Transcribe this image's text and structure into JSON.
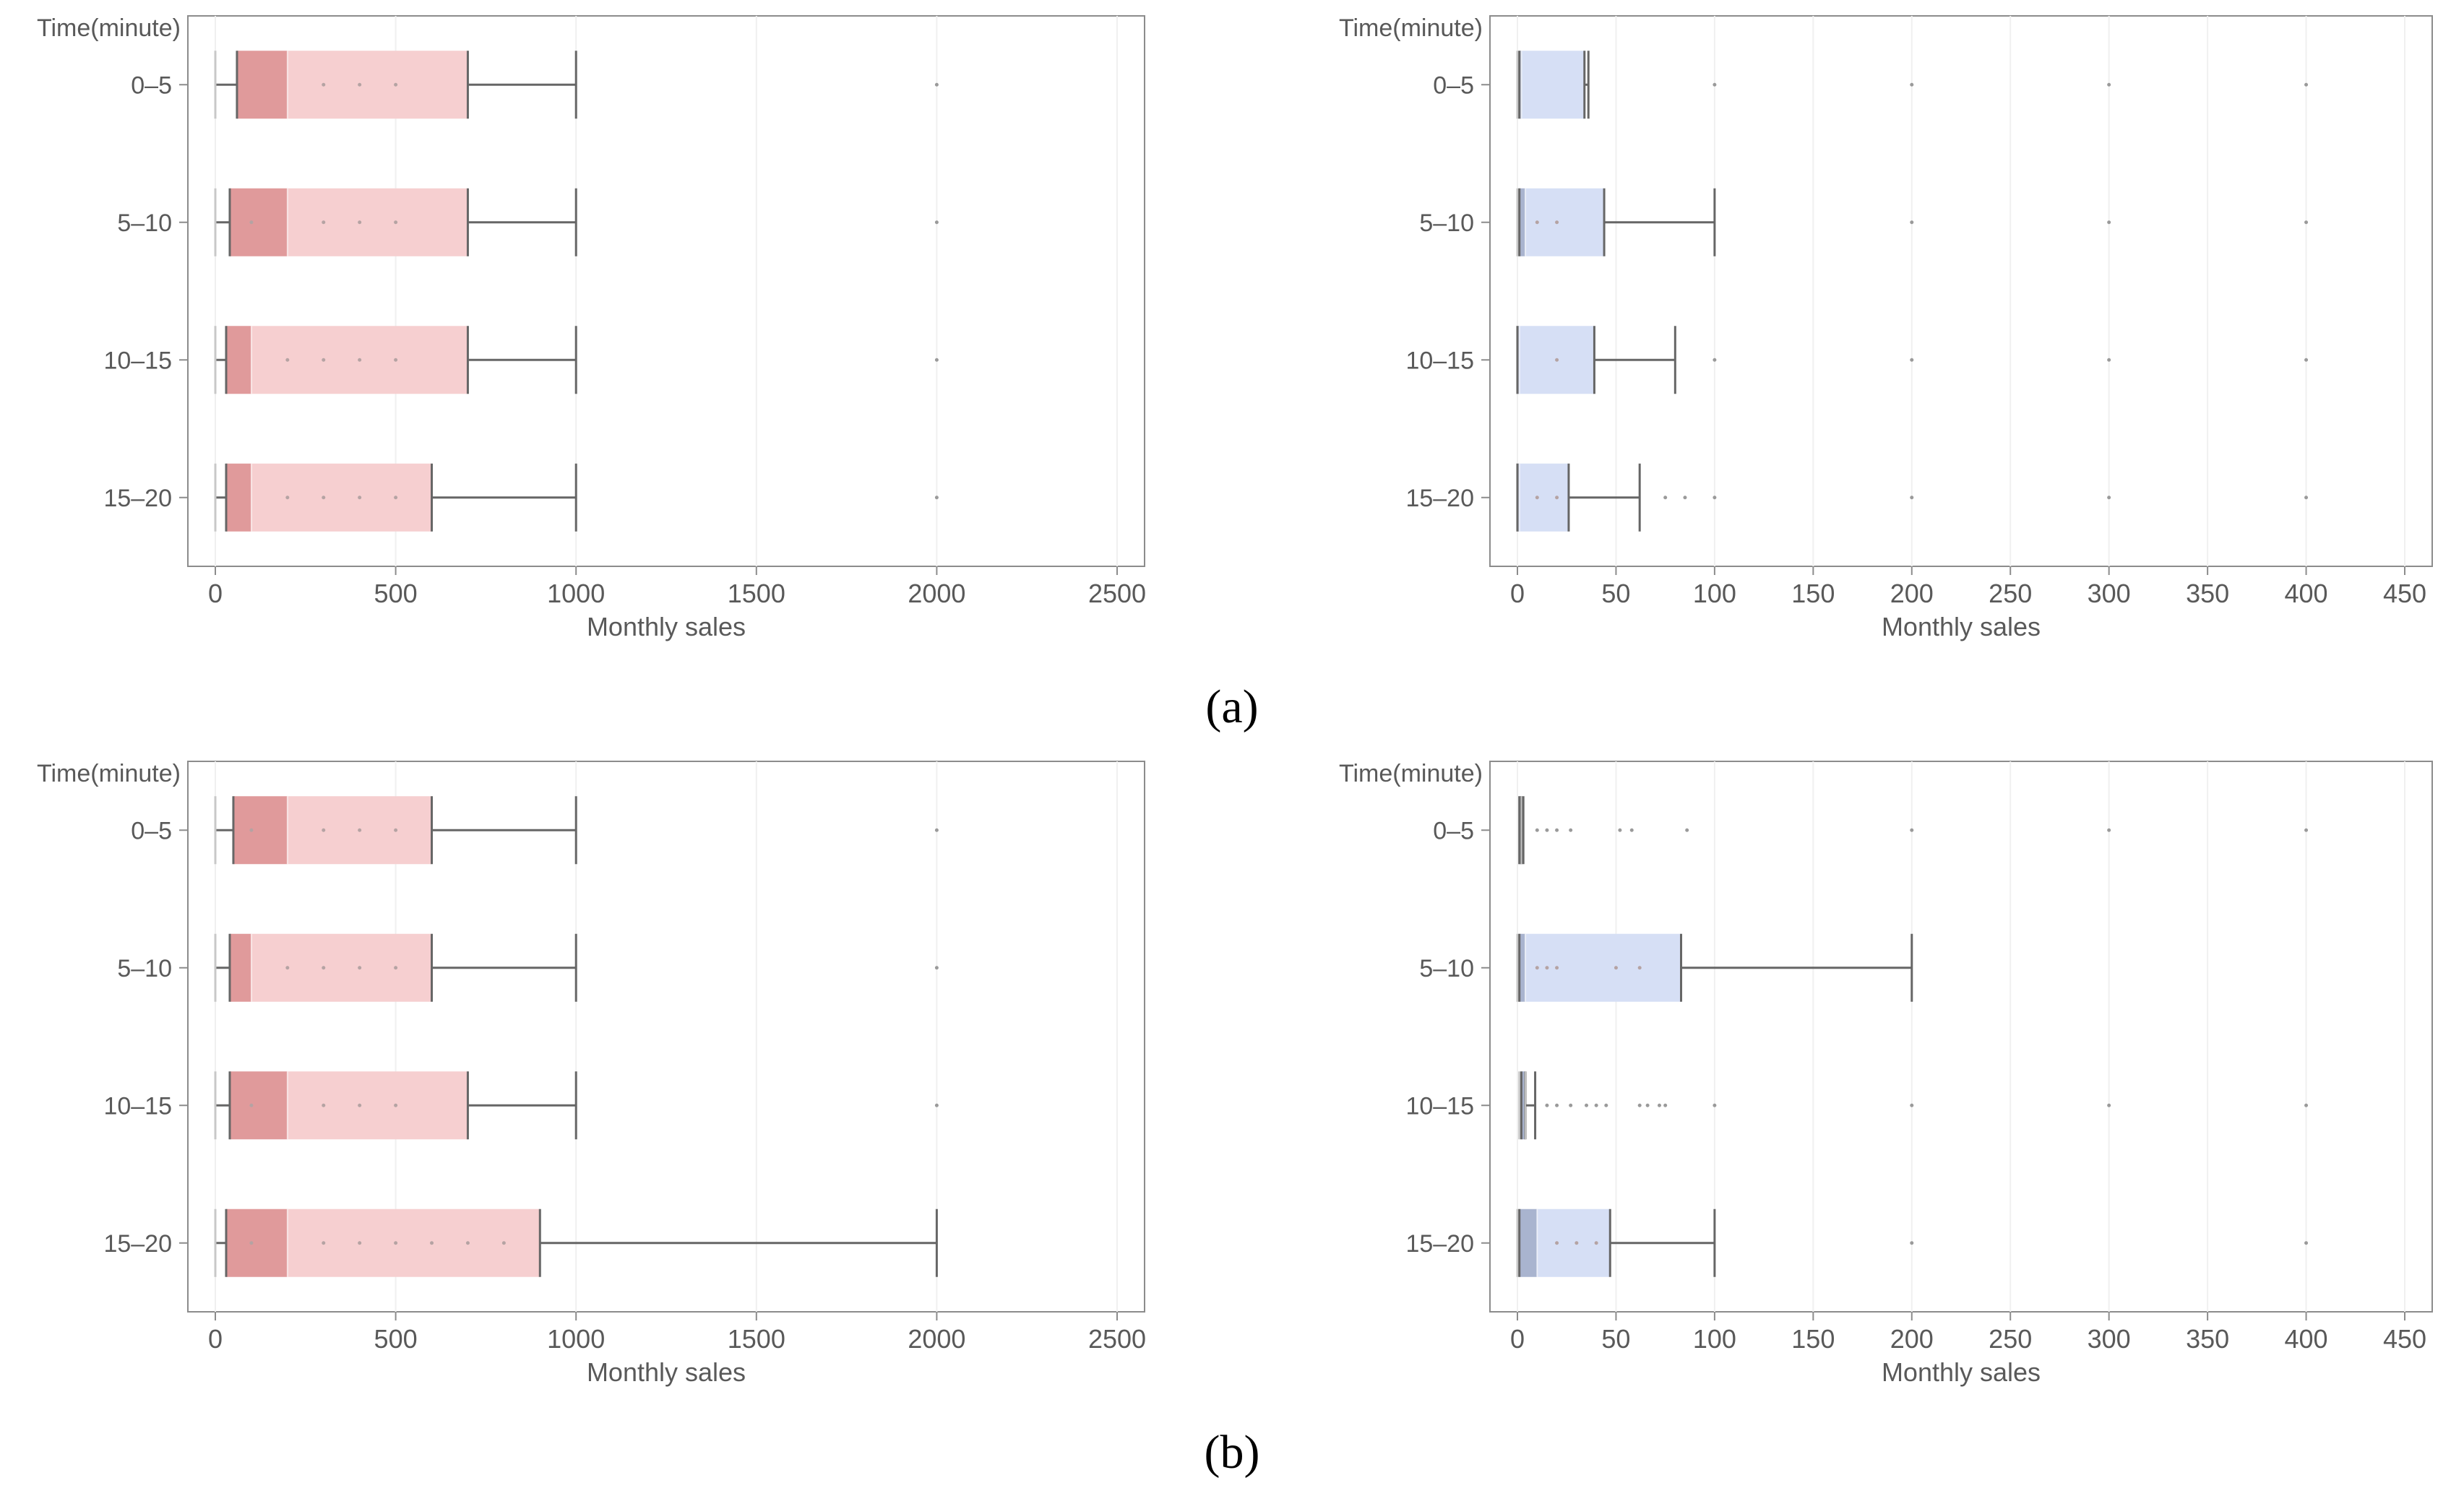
{
  "colors": {
    "red_fill": "#f6cfd0",
    "red_dark": "#e09a9b",
    "blue_fill": "#d6dff5",
    "blue_dark": "#a9b4cf",
    "line": "#666666",
    "frame": "#8c8c8c",
    "grid": "#f0f0f0"
  },
  "captions": [
    "(a)",
    "(b)"
  ],
  "chart_data": [
    {
      "type": "box",
      "orientation": "horizontal",
      "panel": "a-left",
      "ylabel": "Time(minute)",
      "xlabel": "Monthly sales",
      "xlim": [
        0,
        2500
      ],
      "xticks": [
        0,
        500,
        1000,
        1500,
        2000,
        2500
      ],
      "xtick_labels": [
        "0",
        "500",
        "1000",
        "1500",
        "2000",
        "2500"
      ],
      "grid": true,
      "color": "red",
      "categories": [
        "0–5",
        "5–10",
        "10–15",
        "15–20"
      ],
      "series": [
        {
          "name": "0–5",
          "min": 0,
          "q1": 60,
          "median": 200,
          "q3": 700,
          "max": 1000,
          "outliers": [
            2000
          ],
          "points": [
            300,
            400,
            500
          ]
        },
        {
          "name": "5–10",
          "min": 0,
          "q1": 40,
          "median": 200,
          "q3": 700,
          "max": 1000,
          "outliers": [
            2000
          ],
          "points": [
            100,
            300,
            400,
            500
          ]
        },
        {
          "name": "10–15",
          "min": 0,
          "q1": 30,
          "median": 100,
          "q3": 700,
          "max": 1000,
          "outliers": [
            2000
          ],
          "points": [
            200,
            300,
            400,
            500
          ]
        },
        {
          "name": "15–20",
          "min": 0,
          "q1": 30,
          "median": 100,
          "q3": 600,
          "max": 1000,
          "outliers": [
            2000
          ],
          "points": [
            200,
            300,
            400,
            500
          ]
        }
      ]
    },
    {
      "type": "box",
      "orientation": "horizontal",
      "panel": "a-right",
      "ylabel": "Time(minute)",
      "xlabel": "Monthly sales",
      "xlim": [
        0,
        450
      ],
      "xticks": [
        0,
        50,
        100,
        150,
        200,
        250,
        300,
        350,
        400,
        450
      ],
      "xtick_labels": [
        "0",
        "50",
        "100",
        "150",
        "200",
        "250",
        "300",
        "350",
        "400",
        "450"
      ],
      "grid": true,
      "color": "blue",
      "categories": [
        "0–5",
        "5–10",
        "10–15",
        "15–20"
      ],
      "series": [
        {
          "name": "0–5",
          "min": 0,
          "q1": 1,
          "median": 2,
          "q3": 34,
          "max": 36,
          "outliers": [
            100,
            200,
            300,
            400
          ],
          "points": []
        },
        {
          "name": "5–10",
          "min": 0,
          "q1": 1,
          "median": 4,
          "q3": 44,
          "max": 100,
          "outliers": [
            200,
            300,
            400
          ],
          "points": [
            10,
            20
          ]
        },
        {
          "name": "10–15",
          "min": 0,
          "q1": 0,
          "median": 1,
          "q3": 39,
          "max": 80,
          "outliers": [
            100,
            200,
            300,
            400
          ],
          "points": [
            20
          ]
        },
        {
          "name": "15–20",
          "min": 0,
          "q1": 0,
          "median": 1,
          "q3": 26,
          "max": 62,
          "outliers": [
            75,
            85,
            100,
            200,
            300,
            400
          ],
          "points": [
            10,
            20
          ]
        }
      ]
    },
    {
      "type": "box",
      "orientation": "horizontal",
      "panel": "b-left",
      "ylabel": "Time(minute)",
      "xlabel": "Monthly sales",
      "xlim": [
        0,
        2500
      ],
      "xticks": [
        0,
        500,
        1000,
        1500,
        2000,
        2500
      ],
      "xtick_labels": [
        "0",
        "500",
        "1000",
        "1500",
        "2000",
        "2500"
      ],
      "grid": true,
      "color": "red",
      "categories": [
        "0–5",
        "5–10",
        "10–15",
        "15–20"
      ],
      "series": [
        {
          "name": "0–5",
          "min": 0,
          "q1": 50,
          "median": 200,
          "q3": 600,
          "max": 1000,
          "outliers": [
            2000
          ],
          "points": [
            100,
            300,
            400,
            500
          ]
        },
        {
          "name": "5–10",
          "min": 0,
          "q1": 40,
          "median": 100,
          "q3": 600,
          "max": 1000,
          "outliers": [
            2000
          ],
          "points": [
            200,
            300,
            400,
            500
          ]
        },
        {
          "name": "10–15",
          "min": 0,
          "q1": 40,
          "median": 200,
          "q3": 700,
          "max": 1000,
          "outliers": [
            2000
          ],
          "points": [
            100,
            300,
            400,
            500
          ]
        },
        {
          "name": "15–20",
          "min": 0,
          "q1": 30,
          "median": 200,
          "q3": 900,
          "max": 2000,
          "outliers": [],
          "points": [
            100,
            300,
            400,
            500,
            600,
            700,
            800
          ]
        }
      ]
    },
    {
      "type": "box",
      "orientation": "horizontal",
      "panel": "b-right",
      "ylabel": "Time(minute)",
      "xlabel": "Monthly sales",
      "xlim": [
        0,
        450
      ],
      "xticks": [
        0,
        50,
        100,
        150,
        200,
        250,
        300,
        350,
        400,
        450
      ],
      "xtick_labels": [
        "0",
        "50",
        "100",
        "150",
        "200",
        "250",
        "300",
        "350",
        "400",
        "450"
      ],
      "grid": true,
      "color": "blue",
      "categories": [
        "0–5",
        "5–10",
        "10–15",
        "15–20"
      ],
      "series": [
        {
          "name": "0–5",
          "min": 1,
          "q1": 1,
          "median": 2,
          "q3": 2,
          "max": 3,
          "outliers": [
            10,
            15,
            20,
            27,
            52,
            58,
            86,
            200,
            300,
            400
          ],
          "points": []
        },
        {
          "name": "5–10",
          "min": 0,
          "q1": 1,
          "median": 4,
          "q3": 83,
          "max": 200,
          "outliers": [],
          "points": [
            10,
            15,
            20,
            50,
            62
          ]
        },
        {
          "name": "10–15",
          "min": 1,
          "q1": 2,
          "median": 4,
          "q3": 4,
          "max": 9,
          "outliers": [
            15,
            20,
            27,
            35,
            40,
            45,
            62,
            66,
            72,
            75,
            100,
            200,
            300,
            400
          ],
          "points": []
        },
        {
          "name": "15–20",
          "min": 0,
          "q1": 1,
          "median": 10,
          "q3": 47,
          "max": 100,
          "outliers": [
            200,
            400
          ],
          "points": [
            20,
            30,
            40
          ]
        }
      ]
    }
  ]
}
